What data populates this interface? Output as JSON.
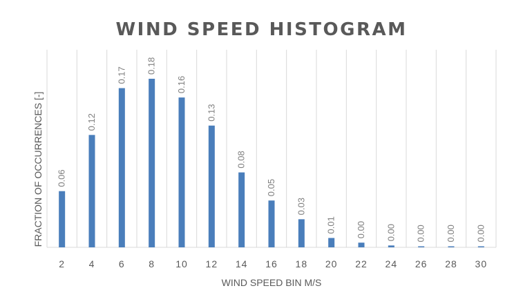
{
  "chart_data": {
    "type": "bar",
    "title": "WIND SPEED HISTOGRAM",
    "xlabel": "WIND SPEED BIN M/S",
    "ylabel": "FRACTION OF OCCURRENCES [-]",
    "categories": [
      "2",
      "4",
      "6",
      "8",
      "10",
      "12",
      "14",
      "16",
      "18",
      "20",
      "22",
      "24",
      "26",
      "28",
      "30"
    ],
    "values": [
      0.06,
      0.12,
      0.17,
      0.18,
      0.16,
      0.13,
      0.08,
      0.05,
      0.03,
      0.01,
      0.005,
      0.002,
      0.001,
      0.001,
      0.001
    ],
    "data_labels": [
      "0.06",
      "0.12",
      "0.17",
      "0.18",
      "0.16",
      "0.13",
      "0.08",
      "0.05",
      "0.03",
      "0.01",
      "0.00",
      "0.00",
      "0.00",
      "0.00",
      "0.00"
    ],
    "ylim": [
      0,
      0.18
    ],
    "grid": "vertical",
    "legend": "none",
    "bar_color": "#4a7ebb",
    "grid_color": "#d9d9d9",
    "text_color": "#595959",
    "label_color": "#7f7f7f"
  }
}
